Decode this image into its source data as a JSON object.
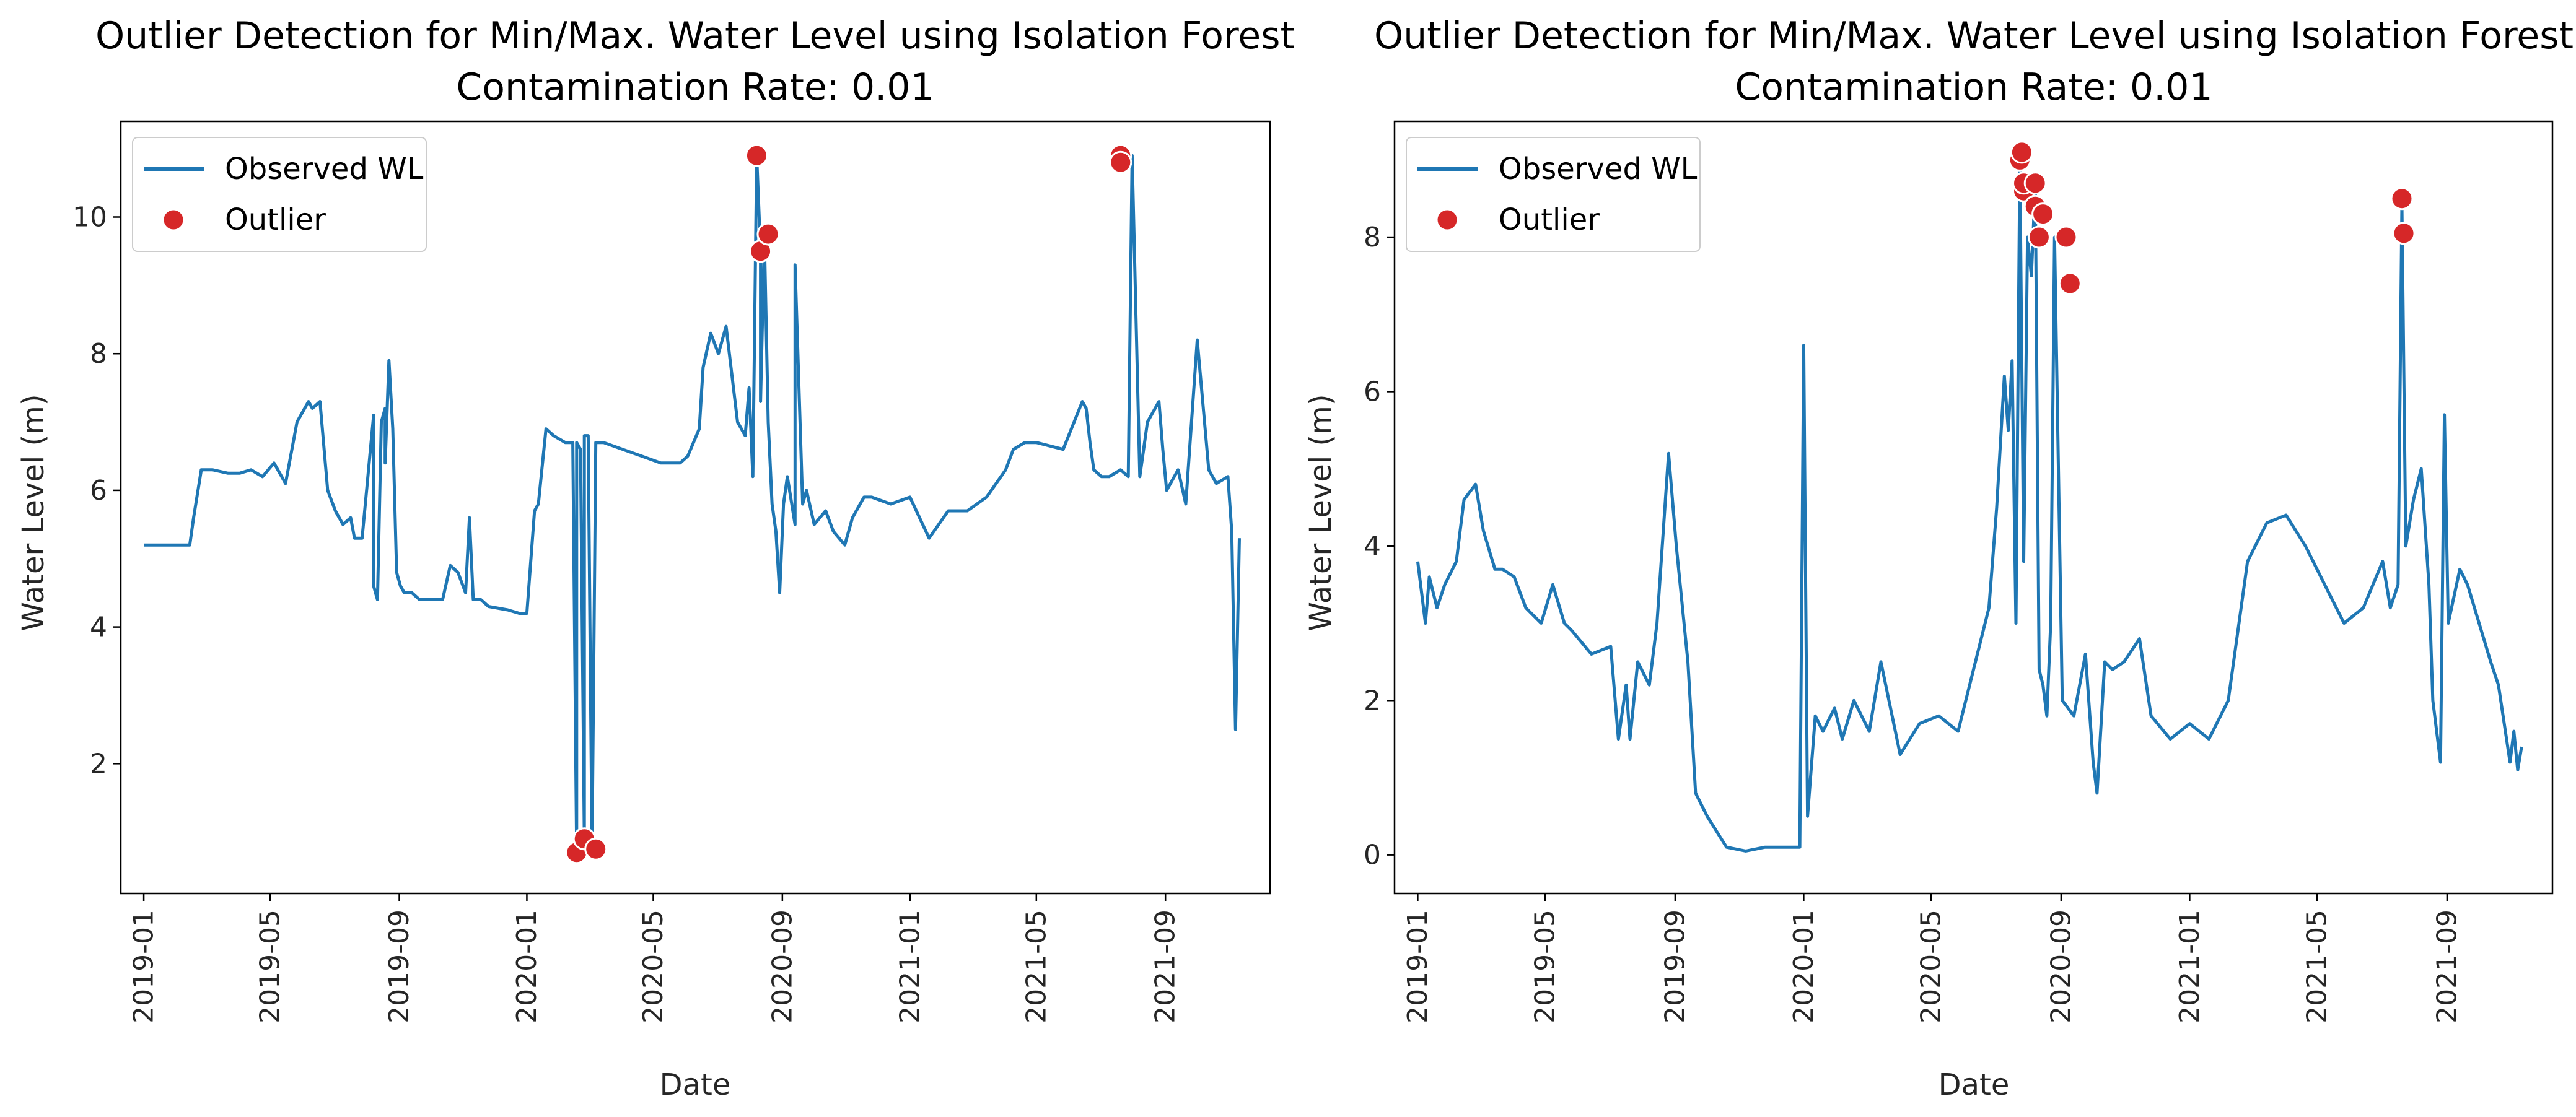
{
  "colors": {
    "line": "#1f77b4",
    "outlier": "#d62728"
  },
  "chart_data": [
    {
      "type": "line",
      "title": "Outlier Detection for Min/Max. Water Level using Isolation Forest",
      "subtitle": "Contamination Rate: 0.01",
      "xlabel": "Date",
      "ylabel": "Water Level (m)",
      "xlim": [
        2018.94,
        2021.94
      ],
      "ylim": [
        0.1,
        11.4
      ],
      "xticks": [
        {
          "x": 2019.0,
          "label": "2019-01"
        },
        {
          "x": 2019.33,
          "label": "2019-05"
        },
        {
          "x": 2019.667,
          "label": "2019-09"
        },
        {
          "x": 2020.0,
          "label": "2020-01"
        },
        {
          "x": 2020.33,
          "label": "2020-05"
        },
        {
          "x": 2020.667,
          "label": "2020-09"
        },
        {
          "x": 2021.0,
          "label": "2021-01"
        },
        {
          "x": 2021.33,
          "label": "2021-05"
        },
        {
          "x": 2021.667,
          "label": "2021-09"
        }
      ],
      "yticks": [
        2,
        4,
        6,
        8,
        10
      ],
      "legend": {
        "position": "top-left",
        "line_label": "Observed WL",
        "marker_label": "Outlier"
      },
      "series": [
        {
          "name": "Observed WL",
          "x": [
            2019.0,
            2019.02,
            2019.04,
            2019.08,
            2019.12,
            2019.13,
            2019.15,
            2019.18,
            2019.22,
            2019.25,
            2019.28,
            2019.31,
            2019.34,
            2019.37,
            2019.4,
            2019.41,
            2019.42,
            2019.43,
            2019.44,
            2019.46,
            2019.48,
            2019.5,
            2019.52,
            2019.54,
            2019.55,
            2019.57,
            2019.6,
            2019.6,
            2019.61,
            2019.62,
            2019.63,
            2019.63,
            2019.64,
            2019.65,
            2019.66,
            2019.67,
            2019.68,
            2019.7,
            2019.72,
            2019.75,
            2019.78,
            2019.8,
            2019.82,
            2019.84,
            2019.85,
            2019.86,
            2019.88,
            2019.9,
            2019.95,
            2019.98,
            2020.0,
            2020.02,
            2020.03,
            2020.05,
            2020.07,
            2020.1,
            2020.12,
            2020.13,
            2020.13,
            2020.14,
            2020.15,
            2020.15,
            2020.16,
            2020.17,
            2020.18,
            2020.2,
            2020.25,
            2020.3,
            2020.35,
            2020.4,
            2020.42,
            2020.45,
            2020.46,
            2020.48,
            2020.5,
            2020.52,
            2020.55,
            2020.57,
            2020.58,
            2020.59,
            2020.6,
            2020.61,
            2020.61,
            2020.62,
            2020.63,
            2020.64,
            2020.65,
            2020.66,
            2020.67,
            2020.68,
            2020.7,
            2020.7,
            2020.72,
            2020.73,
            2020.75,
            2020.78,
            2020.8,
            2020.83,
            2020.85,
            2020.88,
            2020.9,
            2020.95,
            2021.0,
            2021.05,
            2021.1,
            2021.15,
            2021.2,
            2021.25,
            2021.27,
            2021.3,
            2021.33,
            2021.4,
            2021.45,
            2021.46,
            2021.47,
            2021.48,
            2021.5,
            2021.52,
            2021.55,
            2021.57,
            2021.58,
            2021.6,
            2021.62,
            2021.65,
            2021.66,
            2021.67,
            2021.7,
            2021.72,
            2021.75,
            2021.78,
            2021.8,
            2021.83,
            2021.84,
            2021.85,
            2021.86
          ],
          "y": [
            5.2,
            5.2,
            5.2,
            5.2,
            5.2,
            5.6,
            6.3,
            6.3,
            6.25,
            6.25,
            6.3,
            6.2,
            6.4,
            6.1,
            7.0,
            7.1,
            7.2,
            7.3,
            7.2,
            7.3,
            6.0,
            5.7,
            5.5,
            5.6,
            5.3,
            5.3,
            7.1,
            4.6,
            4.4,
            7.0,
            7.2,
            6.4,
            7.9,
            6.9,
            4.8,
            4.6,
            4.5,
            4.5,
            4.4,
            4.4,
            4.4,
            4.9,
            4.8,
            4.5,
            5.6,
            4.4,
            4.4,
            4.3,
            4.25,
            4.2,
            4.2,
            5.7,
            5.8,
            6.9,
            6.8,
            6.7,
            6.7,
            0.7,
            6.7,
            6.6,
            0.9,
            6.8,
            6.8,
            0.75,
            6.7,
            6.7,
            6.6,
            6.5,
            6.4,
            6.4,
            6.5,
            6.9,
            7.8,
            8.3,
            8.0,
            8.4,
            7.0,
            6.8,
            7.5,
            6.2,
            10.9,
            9.5,
            7.3,
            9.7,
            7.0,
            5.8,
            5.4,
            4.5,
            5.8,
            6.2,
            5.5,
            9.3,
            5.8,
            6.0,
            5.5,
            5.7,
            5.4,
            5.2,
            5.6,
            5.9,
            5.9,
            5.8,
            5.9,
            5.3,
            5.7,
            5.7,
            5.9,
            6.3,
            6.6,
            6.7,
            6.7,
            6.6,
            7.3,
            7.2,
            6.7,
            6.3,
            6.2,
            6.2,
            6.3,
            6.2,
            10.9,
            6.2,
            7.0,
            7.3,
            6.6,
            6.0,
            6.3,
            5.8,
            8.2,
            6.3,
            6.1,
            6.2,
            5.4,
            2.5,
            5.3
          ]
        }
      ],
      "outliers": {
        "name": "Outlier",
        "x": [
          2020.13,
          2020.15,
          2020.18,
          2020.6,
          2020.61,
          2020.63,
          2021.55,
          2021.55
        ],
        "y": [
          0.7,
          0.9,
          0.75,
          10.9,
          9.5,
          9.75,
          10.9,
          10.8
        ]
      }
    },
    {
      "type": "line",
      "title": "Outlier Detection for Min/Max. Water Level using Isolation Forest",
      "subtitle": "Contamination Rate: 0.01",
      "xlabel": "Date",
      "ylabel": "Water Level (m)",
      "xlim": [
        2018.94,
        2021.94
      ],
      "ylim": [
        -0.5,
        9.5
      ],
      "xticks": [
        {
          "x": 2019.0,
          "label": "2019-01"
        },
        {
          "x": 2019.33,
          "label": "2019-05"
        },
        {
          "x": 2019.667,
          "label": "2019-09"
        },
        {
          "x": 2020.0,
          "label": "2020-01"
        },
        {
          "x": 2020.33,
          "label": "2020-05"
        },
        {
          "x": 2020.667,
          "label": "2020-09"
        },
        {
          "x": 2021.0,
          "label": "2021-01"
        },
        {
          "x": 2021.33,
          "label": "2021-05"
        },
        {
          "x": 2021.667,
          "label": "2021-09"
        }
      ],
      "yticks": [
        0,
        2,
        4,
        6,
        8
      ],
      "legend": {
        "position": "top-left",
        "line_label": "Observed WL",
        "marker_label": "Outlier"
      },
      "series": [
        {
          "name": "Observed WL",
          "x": [
            2019.0,
            2019.01,
            2019.02,
            2019.03,
            2019.05,
            2019.07,
            2019.1,
            2019.12,
            2019.15,
            2019.17,
            2019.2,
            2019.22,
            2019.25,
            2019.28,
            2019.32,
            2019.35,
            2019.38,
            2019.4,
            2019.45,
            2019.5,
            2019.52,
            2019.54,
            2019.55,
            2019.57,
            2019.6,
            2019.62,
            2019.65,
            2019.67,
            2019.7,
            2019.72,
            2019.75,
            2019.8,
            2019.85,
            2019.9,
            2019.95,
            2019.99,
            2020.0,
            2020.01,
            2020.03,
            2020.05,
            2020.08,
            2020.1,
            2020.13,
            2020.17,
            2020.2,
            2020.25,
            2020.3,
            2020.35,
            2020.4,
            2020.45,
            2020.48,
            2020.5,
            2020.52,
            2020.53,
            2020.54,
            2020.55,
            2020.56,
            2020.57,
            2020.58,
            2020.59,
            2020.6,
            2020.61,
            2020.62,
            2020.63,
            2020.64,
            2020.65,
            2020.67,
            2020.7,
            2020.73,
            2020.75,
            2020.76,
            2020.78,
            2020.8,
            2020.83,
            2020.87,
            2020.9,
            2020.95,
            2021.0,
            2021.05,
            2021.1,
            2021.15,
            2021.2,
            2021.25,
            2021.3,
            2021.35,
            2021.4,
            2021.45,
            2021.5,
            2021.52,
            2021.54,
            2021.55,
            2021.56,
            2021.58,
            2021.6,
            2021.62,
            2021.63,
            2021.65,
            2021.66,
            2021.67,
            2021.7,
            2021.72,
            2021.75,
            2021.78,
            2021.8,
            2021.83,
            2021.84,
            2021.85,
            2021.86
          ],
          "y": [
            3.8,
            3.4,
            3.0,
            3.6,
            3.2,
            3.5,
            3.8,
            4.6,
            4.8,
            4.2,
            3.7,
            3.7,
            3.6,
            3.2,
            3.0,
            3.5,
            3.0,
            2.9,
            2.6,
            2.7,
            1.5,
            2.2,
            1.5,
            2.5,
            2.2,
            3.0,
            5.2,
            4.0,
            2.5,
            0.8,
            0.5,
            0.1,
            0.05,
            0.1,
            0.1,
            0.1,
            6.6,
            0.5,
            1.8,
            1.6,
            1.9,
            1.5,
            2.0,
            1.6,
            2.5,
            1.3,
            1.7,
            1.8,
            1.6,
            2.6,
            3.2,
            4.5,
            6.2,
            5.5,
            6.4,
            3.0,
            9.0,
            3.8,
            8.0,
            7.5,
            8.7,
            2.4,
            2.2,
            1.8,
            3.0,
            8.0,
            2.0,
            1.8,
            2.6,
            1.2,
            0.8,
            2.5,
            2.4,
            2.5,
            2.8,
            1.8,
            1.5,
            1.7,
            1.5,
            2.0,
            3.8,
            4.3,
            4.4,
            4.0,
            3.5,
            3.0,
            3.2,
            3.8,
            3.2,
            3.5,
            8.4,
            4.0,
            4.6,
            5.0,
            3.5,
            2.0,
            1.2,
            5.7,
            3.0,
            3.7,
            3.5,
            3.0,
            2.5,
            2.2,
            1.2,
            1.6,
            1.1,
            1.4
          ]
        }
      ],
      "outliers": {
        "name": "Outlier",
        "x": [
          2020.56,
          2020.565,
          2020.57,
          2020.57,
          2020.6,
          2020.6,
          2020.61,
          2020.62,
          2020.68,
          2020.69,
          2021.55,
          2021.555
        ],
        "y": [
          9.0,
          9.1,
          8.6,
          8.7,
          8.7,
          8.4,
          8.0,
          8.3,
          8.0,
          7.4,
          8.5,
          8.05
        ]
      }
    }
  ]
}
